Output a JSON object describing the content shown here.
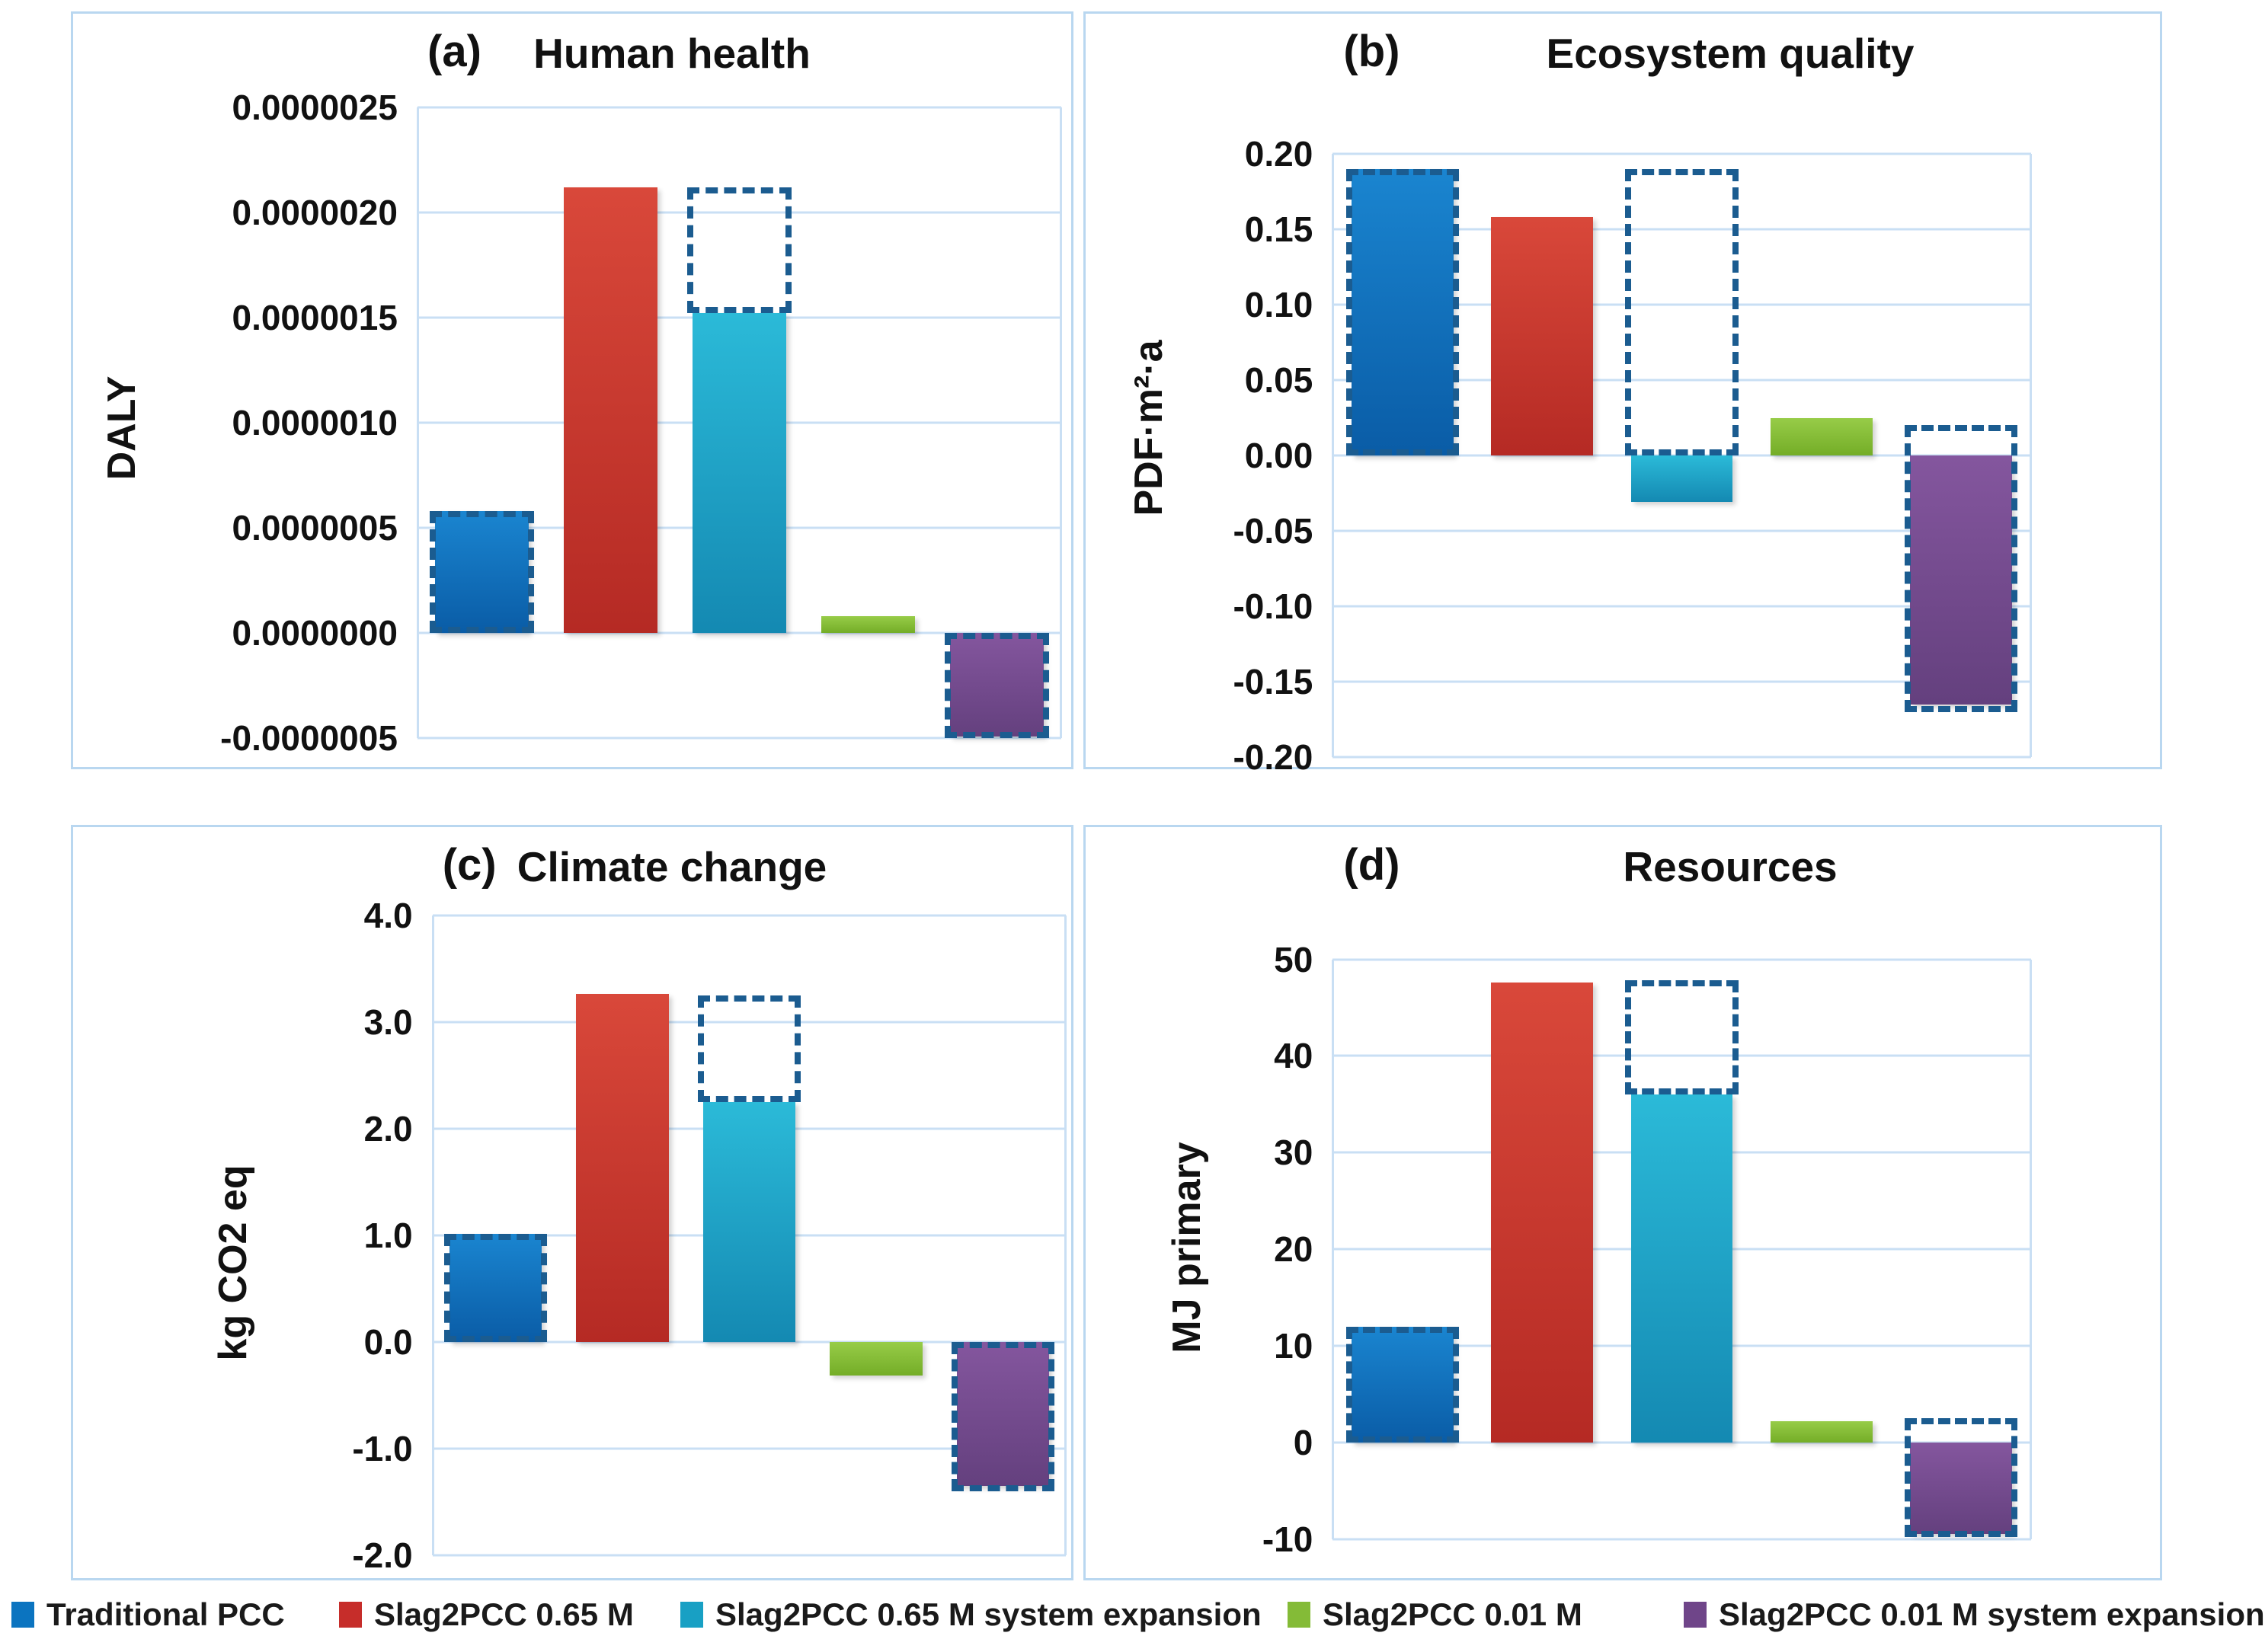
{
  "figure": {
    "legend": {
      "items": [
        {
          "label": "Traditional PCC",
          "color": "#0b74c0"
        },
        {
          "label": "Slag2PCC 0.65 M",
          "color": "#c62d2a"
        },
        {
          "label": "Slag2PCC 0.65 M system expansion",
          "color": "#18a0c4"
        },
        {
          "label": "Slag2PCC 0.01 M",
          "color": "#84bb37"
        },
        {
          "label": "Slag2PCC 0.01 M system expansion",
          "color": "#6f4589"
        }
      ]
    },
    "colors": {
      "gridline": "#c9dff4",
      "panel_border": "#b9d7f0",
      "dash_outline": "#1b5c90",
      "series_gradients": [
        [
          "#1a85d0",
          "#0a5ca6"
        ],
        [
          "#d9483a",
          "#b52a24"
        ],
        [
          "#2bbad8",
          "#1489b2"
        ],
        [
          "#97cc48",
          "#74ad27"
        ],
        [
          "#84569e",
          "#64407e"
        ]
      ]
    }
  },
  "chart_data": [
    {
      "id": "a",
      "type": "bar",
      "panel_label": "(a)",
      "title": "Human health",
      "ylabel": "DALY",
      "ylim": [
        -5e-07,
        2.5e-06
      ],
      "grid": true,
      "legend_position": "bottom",
      "yticks": [
        {
          "label": "0.0000025",
          "value": 2.5e-06
        },
        {
          "label": "0.0000020",
          "value": 2e-06
        },
        {
          "label": "0.0000015",
          "value": 1.5e-06
        },
        {
          "label": "0.0000010",
          "value": 1e-06
        },
        {
          "label": "0.0000005",
          "value": 5e-07
        },
        {
          "label": "0.0000000",
          "value": 0.0
        },
        {
          "label": "-0.0000005",
          "value": -5e-07
        }
      ],
      "categories": [
        "Traditional PCC",
        "Slag2PCC 0.65 M",
        "Slag2PCC 0.65 M system expansion",
        "Slag2PCC 0.01 M",
        "Slag2PCC 0.01 M system expansion"
      ],
      "bars": [
        {
          "series": "Traditional PCC",
          "value": 5.8e-07,
          "dash_outline": [
            5.8e-07,
            0
          ]
        },
        {
          "series": "Slag2PCC 0.65 M",
          "value": 2.12e-06,
          "dash_outline": null
        },
        {
          "series": "Slag2PCC 0.65 M system expansion",
          "value": 1.52e-06,
          "dash_outline": [
            2.12e-06,
            1.52e-06
          ]
        },
        {
          "series": "Slag2PCC 0.01 M",
          "value": 8e-08,
          "dash_outline": null
        },
        {
          "series": "Slag2PCC 0.01 M system expansion",
          "value": -4.9e-07,
          "dash_outline": [
            0,
            -5e-07
          ]
        }
      ]
    },
    {
      "id": "b",
      "type": "bar",
      "panel_label": "(b)",
      "title": "Ecosystem quality",
      "ylabel": "PDF·m²·a",
      "ylim": [
        -0.2,
        0.2
      ],
      "grid": true,
      "legend_position": "bottom",
      "yticks": [
        {
          "label": "0.20",
          "value": 0.2
        },
        {
          "label": "0.15",
          "value": 0.15
        },
        {
          "label": "0.10",
          "value": 0.1
        },
        {
          "label": "0.05",
          "value": 0.05
        },
        {
          "label": "0.00",
          "value": 0.0
        },
        {
          "label": "-0.05",
          "value": -0.05
        },
        {
          "label": "-0.10",
          "value": -0.1
        },
        {
          "label": "-0.15",
          "value": -0.15
        },
        {
          "label": "-0.20",
          "value": -0.2
        }
      ],
      "categories": [
        "Traditional PCC",
        "Slag2PCC 0.65 M",
        "Slag2PCC 0.65 M system expansion",
        "Slag2PCC 0.01 M",
        "Slag2PCC 0.01 M system expansion"
      ],
      "bars": [
        {
          "series": "Traditional PCC",
          "value": 0.19,
          "dash_outline": [
            0.19,
            0
          ]
        },
        {
          "series": "Slag2PCC 0.65 M",
          "value": 0.158,
          "dash_outline": null
        },
        {
          "series": "Slag2PCC 0.65 M system expansion",
          "value": -0.031,
          "dash_outline": [
            0.19,
            0
          ]
        },
        {
          "series": "Slag2PCC 0.01 M",
          "value": 0.025,
          "dash_outline": null
        },
        {
          "series": "Slag2PCC 0.01 M system expansion",
          "value": -0.165,
          "dash_outline": [
            0.02,
            -0.17
          ]
        }
      ]
    },
    {
      "id": "c",
      "type": "bar",
      "panel_label": "(c)",
      "title": "Climate change",
      "ylabel": "kg CO2 eq",
      "ylim": [
        -2.0,
        4.0
      ],
      "grid": true,
      "legend_position": "bottom",
      "yticks": [
        {
          "label": "4.0",
          "value": 4.0
        },
        {
          "label": "3.0",
          "value": 3.0
        },
        {
          "label": "2.0",
          "value": 2.0
        },
        {
          "label": "1.0",
          "value": 1.0
        },
        {
          "label": "0.0",
          "value": 0.0
        },
        {
          "label": "-1.0",
          "value": -1.0
        },
        {
          "label": "-2.0",
          "value": -2.0
        }
      ],
      "categories": [
        "Traditional PCC",
        "Slag2PCC 0.65 M",
        "Slag2PCC 0.65 M system expansion",
        "Slag2PCC 0.01 M",
        "Slag2PCC 0.01 M system expansion"
      ],
      "bars": [
        {
          "series": "Traditional PCC",
          "value": 1.02,
          "dash_outline": [
            1.02,
            0
          ]
        },
        {
          "series": "Slag2PCC 0.65 M",
          "value": 3.27,
          "dash_outline": null
        },
        {
          "series": "Slag2PCC 0.65 M system expansion",
          "value": 2.25,
          "dash_outline": [
            3.25,
            2.25
          ]
        },
        {
          "series": "Slag2PCC 0.01 M",
          "value": -0.31,
          "dash_outline": null
        },
        {
          "series": "Slag2PCC 0.01 M system expansion",
          "value": -1.35,
          "dash_outline": [
            0,
            -1.4
          ]
        }
      ]
    },
    {
      "id": "d",
      "type": "bar",
      "panel_label": "(d)",
      "title": "Resources",
      "ylabel": "MJ primary",
      "ylim": [
        -10,
        50
      ],
      "grid": true,
      "legend_position": "bottom",
      "yticks": [
        {
          "label": "50",
          "value": 50
        },
        {
          "label": "40",
          "value": 40
        },
        {
          "label": "30",
          "value": 30
        },
        {
          "label": "20",
          "value": 20
        },
        {
          "label": "10",
          "value": 10
        },
        {
          "label": "0",
          "value": 0
        },
        {
          "label": "-10",
          "value": -10
        }
      ],
      "categories": [
        "Traditional PCC",
        "Slag2PCC 0.65 M",
        "Slag2PCC 0.65 M system expansion",
        "Slag2PCC 0.01 M",
        "Slag2PCC 0.01 M system expansion"
      ],
      "bars": [
        {
          "series": "Traditional PCC",
          "value": 12,
          "dash_outline": [
            12,
            0
          ]
        },
        {
          "series": "Slag2PCC 0.65 M",
          "value": 47.6,
          "dash_outline": null
        },
        {
          "series": "Slag2PCC 0.65 M system expansion",
          "value": 36,
          "dash_outline": [
            47.8,
            36
          ]
        },
        {
          "series": "Slag2PCC 0.01 M",
          "value": 2.2,
          "dash_outline": null
        },
        {
          "series": "Slag2PCC 0.01 M system expansion",
          "value": -9.5,
          "dash_outline": [
            2.5,
            -9.8
          ]
        }
      ]
    }
  ]
}
